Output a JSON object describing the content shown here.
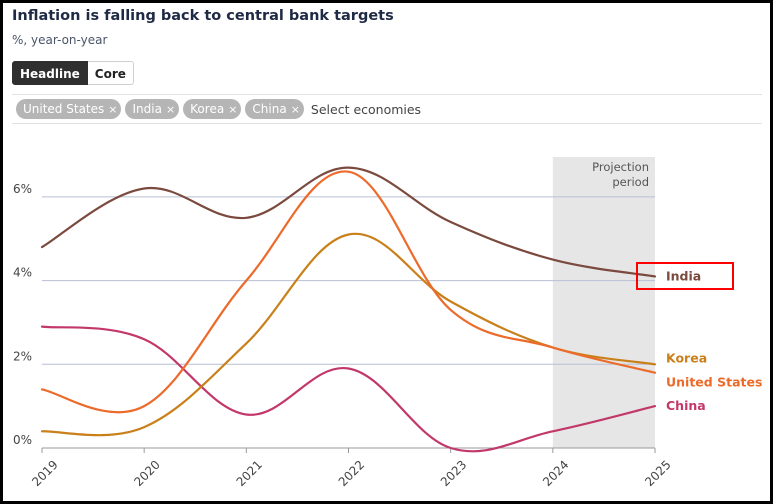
{
  "header": {
    "title": "Inflation is falling back to central bank targets",
    "subtitle": "%, year-on-year"
  },
  "tabs": [
    {
      "label": "Headline",
      "active": true
    },
    {
      "label": "Core",
      "active": false
    }
  ],
  "selector": {
    "chips": [
      {
        "label": "United States",
        "remove_glyph": "×"
      },
      {
        "label": "India",
        "remove_glyph": "×"
      },
      {
        "label": "Korea",
        "remove_glyph": "×"
      },
      {
        "label": "China",
        "remove_glyph": "×"
      }
    ],
    "placeholder": "Select economies"
  },
  "chart_data": {
    "type": "line",
    "x": [
      2019,
      2020,
      2021,
      2022,
      2023,
      2024,
      2025
    ],
    "ylim": [
      0,
      7
    ],
    "yticks": [
      0,
      2,
      4,
      6
    ],
    "ytick_labels": [
      "0%",
      "2%",
      "4%",
      "6%"
    ],
    "projection_band": {
      "from": 2024,
      "to": 2025,
      "label_line1": "Projection",
      "label_line2": "period"
    },
    "series": [
      {
        "name": "India",
        "color": "#7b4a3e",
        "values": [
          4.8,
          6.2,
          5.5,
          6.7,
          5.4,
          4.5,
          4.1
        ],
        "highlighted": true
      },
      {
        "name": "Korea",
        "color": "#c9801a",
        "values": [
          0.4,
          0.5,
          2.5,
          5.1,
          3.5,
          2.4,
          2.0
        ]
      },
      {
        "name": "United States",
        "color": "#ec6a2a",
        "values": [
          1.4,
          1.0,
          4.0,
          6.6,
          3.3,
          2.4,
          1.8
        ]
      },
      {
        "name": "China",
        "color": "#c2386a",
        "values": [
          2.9,
          2.6,
          0.8,
          1.9,
          0.0,
          0.4,
          1.0
        ]
      }
    ]
  }
}
